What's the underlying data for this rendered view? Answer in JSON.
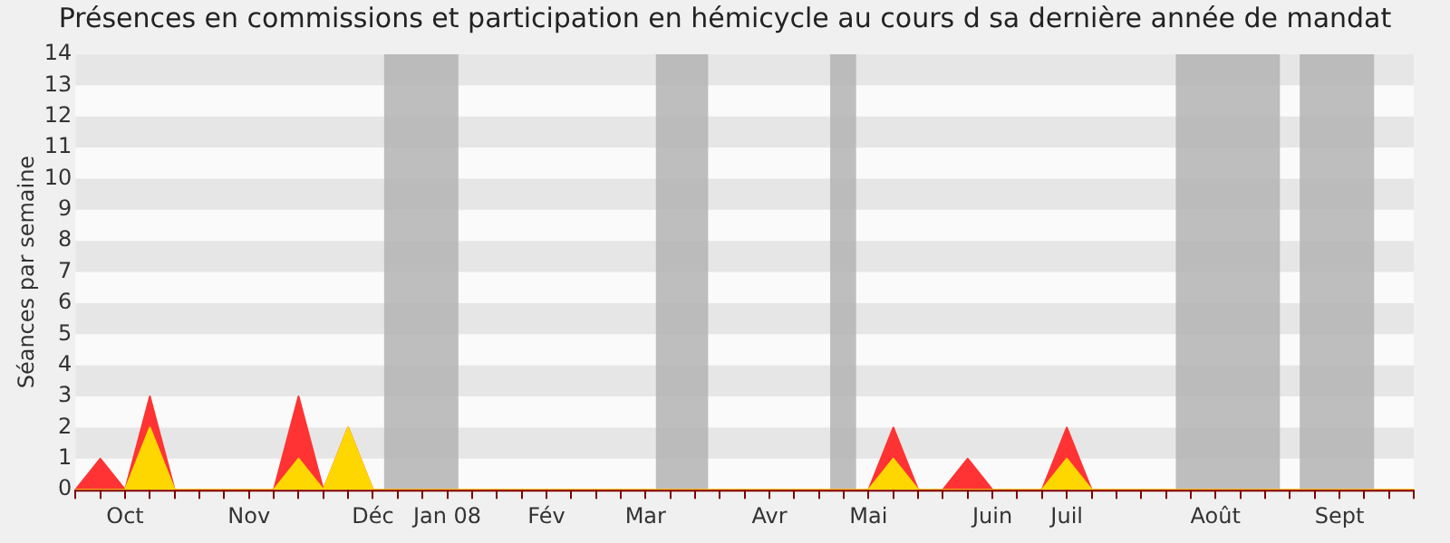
{
  "chart_data": {
    "type": "area",
    "title": "Présences en commissions et participation en hémicycle au cours d sa dernière année de mandat",
    "ylabel": "Séances par semaine",
    "categories": [
      null,
      null,
      "Oct",
      null,
      null,
      null,
      null,
      "Nov",
      null,
      null,
      null,
      null,
      "Déc",
      null,
      null,
      "Jan 08",
      null,
      null,
      null,
      "Fév",
      null,
      null,
      null,
      "Mar",
      null,
      null,
      null,
      null,
      "Avr",
      null,
      null,
      null,
      "Mai",
      null,
      null,
      null,
      null,
      "Juin",
      null,
      null,
      "Juil",
      null,
      null,
      null,
      null,
      null,
      "Août",
      null,
      null,
      null,
      null,
      "Sept",
      null,
      null,
      null
    ],
    "series": [
      {
        "color": "#ff3333",
        "values": [
          0,
          1,
          0,
          3,
          0,
          0,
          0,
          0,
          0,
          3,
          0,
          2,
          0,
          0,
          0,
          0,
          0,
          0,
          0,
          0,
          0,
          0,
          0,
          0,
          0,
          0,
          0,
          0,
          0,
          0,
          0,
          0,
          0,
          2,
          0,
          0,
          1,
          0,
          0,
          0,
          2,
          0,
          0,
          0,
          0,
          0,
          0,
          0,
          0,
          0,
          0,
          0,
          0,
          0,
          0
        ]
      },
      {
        "color": "#ffd700",
        "values": [
          0,
          0,
          0,
          2,
          0,
          0,
          0,
          0,
          0,
          1,
          0,
          2,
          0,
          0,
          0,
          0,
          0,
          0,
          0,
          0,
          0,
          0,
          0,
          0,
          0,
          0,
          0,
          0,
          0,
          0,
          0,
          0,
          0,
          1,
          0,
          0,
          0,
          0,
          0,
          0,
          1,
          0,
          0,
          0,
          0,
          0,
          0,
          0,
          0,
          0,
          0,
          0,
          0,
          0,
          0
        ]
      }
    ],
    "ylim": [
      0,
      14
    ],
    "yticks": [
      0,
      1,
      2,
      3,
      4,
      5,
      6,
      7,
      8,
      9,
      10,
      11,
      12,
      13,
      14
    ],
    "legend": false
  }
}
